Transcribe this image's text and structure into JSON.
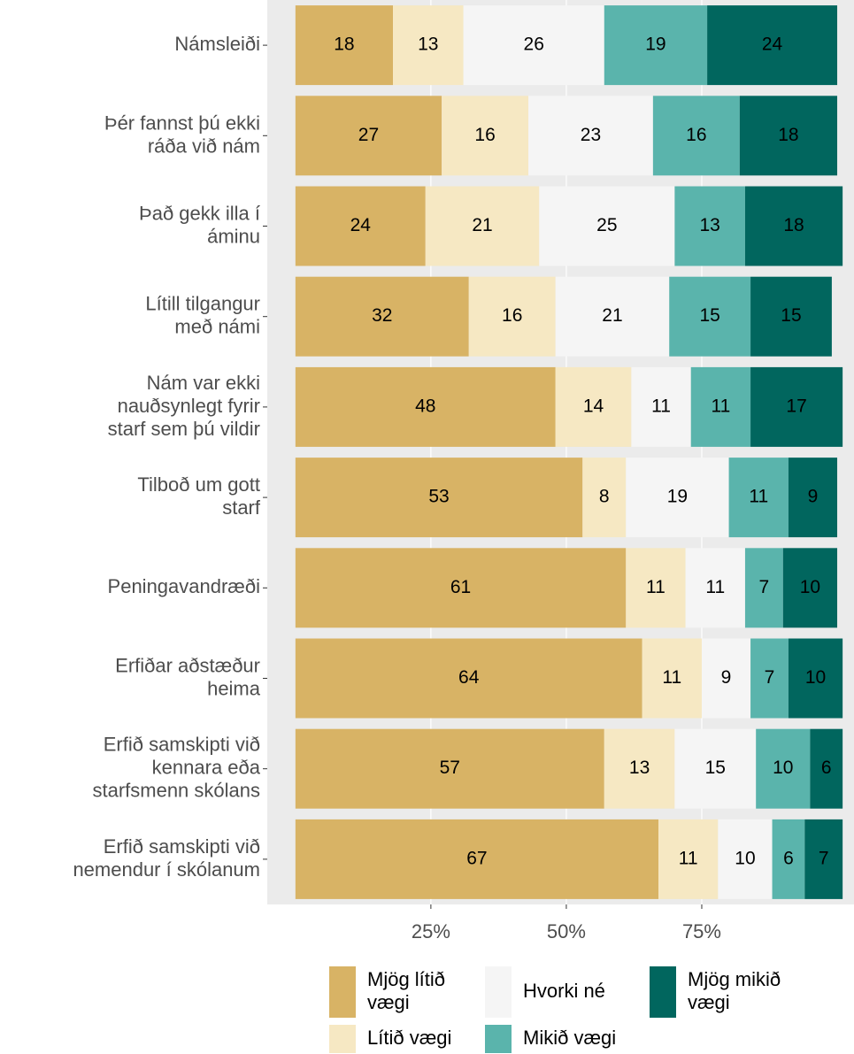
{
  "chart_data": {
    "type": "stacked-bar-horizontal",
    "categories": [
      "Námsleiði",
      "Þér fannst þú ekki\nráða við nám",
      "Það gekk illa í\náminu",
      "Lítill tilgangur\nmeð námi",
      "Nám var ekki\nnauðsynlegt fyrir\nstarf sem þú vildir",
      "Tilboð um gott\nstarf",
      "Peningavandræði",
      "Erfiðar aðstæður\nheima",
      "Erfið samskipti við\nkennara eða\nstarfsmenn skólans",
      "Erfið samskipti við\nnemendur í skólanum"
    ],
    "series": [
      {
        "name": "Mjög lítið\nvægi",
        "color": "#d8b365",
        "values": [
          18,
          27,
          24,
          32,
          48,
          53,
          61,
          64,
          57,
          67
        ]
      },
      {
        "name": "Lítið vægi",
        "color": "#f6e8c3",
        "values": [
          13,
          16,
          21,
          16,
          14,
          8,
          11,
          11,
          13,
          11
        ]
      },
      {
        "name": "Hvorki né",
        "color": "#f5f5f5",
        "values": [
          26,
          23,
          25,
          21,
          11,
          19,
          11,
          9,
          15,
          10
        ]
      },
      {
        "name": "Mikið vægi",
        "color": "#5ab4ac",
        "values": [
          19,
          16,
          13,
          15,
          11,
          11,
          7,
          7,
          10,
          6
        ]
      },
      {
        "name": "Mjög mikið\nvægi",
        "color": "#01665e",
        "values": [
          24,
          18,
          18,
          15,
          17,
          9,
          10,
          10,
          6,
          7
        ]
      }
    ],
    "xlim": [
      -5.2,
      103.1
    ],
    "xticks": [
      {
        "value": 25,
        "label": "25%"
      },
      {
        "value": 50,
        "label": "50%"
      },
      {
        "value": 75,
        "label": "75%"
      }
    ],
    "grid": true
  }
}
